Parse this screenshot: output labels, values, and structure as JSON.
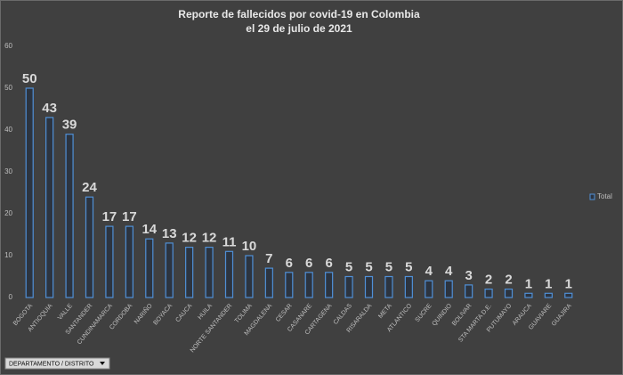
{
  "chart_data": {
    "type": "bar",
    "title": "Reporte de fallecidos por covid-19 en Colombia",
    "subtitle": "el 29 de julio de 2021",
    "categories": [
      "BOGOTA",
      "ANTIOQUIA",
      "VALLE",
      "SANTANDER",
      "CUNDINAMARCA",
      "CORDOBA",
      "NARIÑO",
      "BOYACA",
      "CAUCA",
      "HUILA",
      "NORTE SANTANDER",
      "TOLIMA",
      "MAGDALENA",
      "CESAR",
      "CASANARE",
      "CARTAGENA",
      "CALDAS",
      "RISARALDA",
      "META",
      "ATLANTICO",
      "SUCRE",
      "QUINDIO",
      "BOLIVAR",
      "STA MARTA D.E.",
      "PUTUMAYO",
      "ARAUCA",
      "GUAVIARE",
      "GUAJIRA"
    ],
    "series": [
      {
        "name": "Total",
        "color": "#4f8fd6",
        "values": [
          50,
          43,
          39,
          24,
          17,
          17,
          14,
          13,
          12,
          12,
          11,
          10,
          7,
          6,
          6,
          6,
          5,
          5,
          5,
          5,
          4,
          4,
          3,
          2,
          2,
          1,
          1,
          1
        ]
      }
    ],
    "ylim": [
      0,
      60
    ],
    "yticks": [
      0,
      10,
      20,
      30,
      40,
      50,
      60
    ],
    "grid": false,
    "legend": "right",
    "filter_button": "DEPARTAMENTO / DISTRITO"
  }
}
